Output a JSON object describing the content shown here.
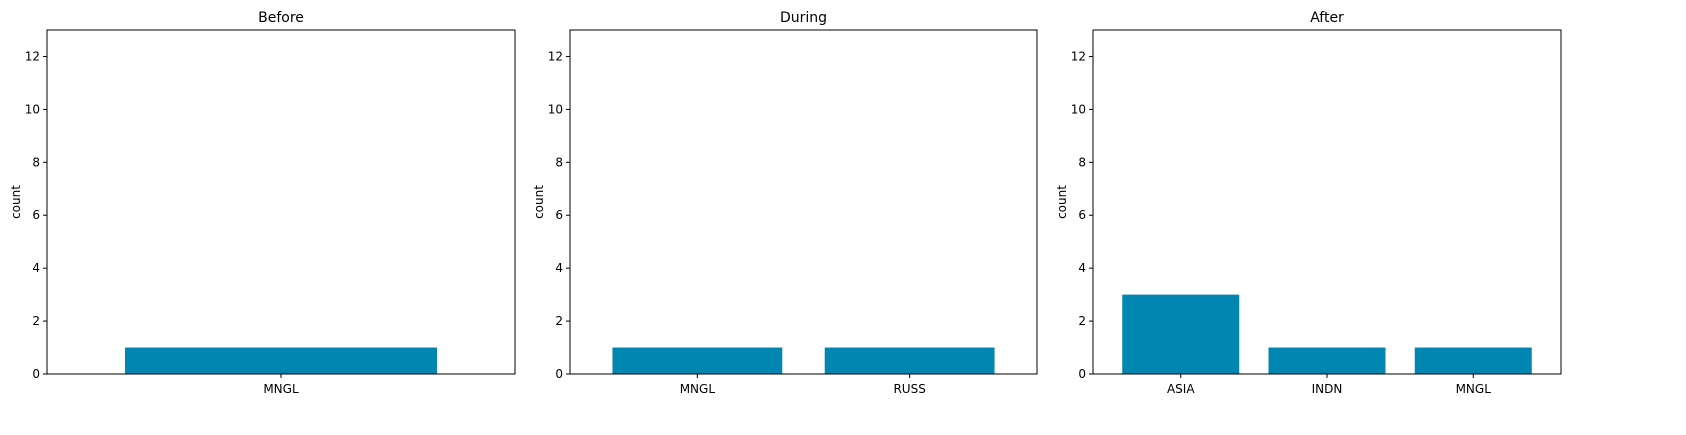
{
  "colors": {
    "bar": "#0086b0",
    "axis": "#000000",
    "background": "#ffffff"
  },
  "chart_data": [
    {
      "type": "bar",
      "title": "Before",
      "xlabel": "",
      "ylabel": "count",
      "ylim": [
        0,
        13
      ],
      "yticks": [
        "0",
        "2",
        "4",
        "6",
        "8",
        "10",
        "12"
      ],
      "categories": [
        "MNGL"
      ],
      "values": [
        1
      ],
      "grid": false
    },
    {
      "type": "bar",
      "title": "During",
      "xlabel": "",
      "ylabel": "count",
      "ylim": [
        0,
        13
      ],
      "yticks": [
        "0",
        "2",
        "4",
        "6",
        "8",
        "10",
        "12"
      ],
      "categories": [
        "MNGL",
        "RUSS"
      ],
      "values": [
        1,
        1
      ],
      "grid": false
    },
    {
      "type": "bar",
      "title": "After",
      "xlabel": "",
      "ylabel": "count",
      "ylim": [
        0,
        13
      ],
      "yticks": [
        "0",
        "2",
        "4",
        "6",
        "8",
        "10",
        "12"
      ],
      "categories": [
        "ASIA",
        "INDN",
        "MNGL"
      ],
      "values": [
        3,
        1,
        1
      ],
      "grid": false
    }
  ]
}
